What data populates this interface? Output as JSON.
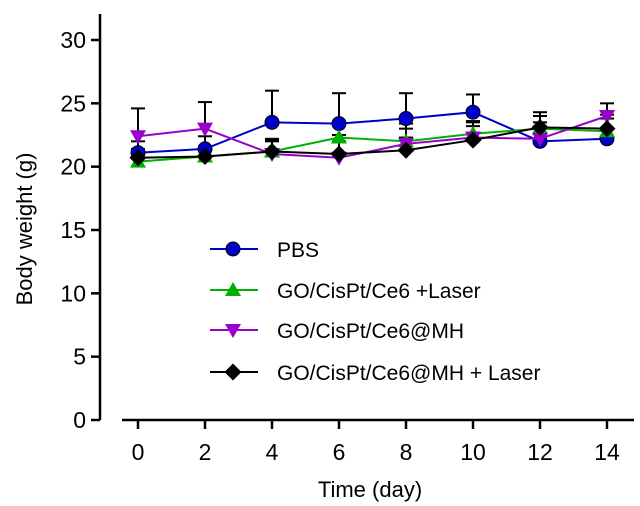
{
  "chart_data": {
    "type": "line",
    "title": "",
    "xlabel": "Time (day)",
    "ylabel": "Body weight (g)",
    "xlim": [
      -1.2,
      15
    ],
    "ylim": [
      0,
      30
    ],
    "xticks": [
      0,
      2,
      4,
      6,
      8,
      10,
      12,
      14
    ],
    "yticks": [
      0,
      5,
      10,
      15,
      20,
      25,
      30
    ],
    "x": [
      0,
      2,
      4,
      6,
      8,
      10,
      12,
      14
    ],
    "grid": false,
    "legend_position": "lower-center",
    "series": [
      {
        "name": "PBS",
        "color": "#0000cc",
        "marker": "circle",
        "values": [
          21.1,
          21.4,
          23.5,
          23.4,
          23.8,
          24.3,
          22.0,
          22.2
        ],
        "error_plus": [
          0.9,
          1.0,
          2.5,
          2.4,
          2.0,
          1.4,
          0.7,
          0.8
        ]
      },
      {
        "name": "GO/CisPt/Ce6 +Laser",
        "color": "#00b000",
        "marker": "triangle-up",
        "values": [
          20.4,
          20.8,
          21.2,
          22.3,
          22.0,
          22.6,
          23.0,
          22.8
        ],
        "error_plus": [
          0.6,
          0.8,
          0.8,
          1.0,
          1.0,
          1.0,
          1.0,
          1.0
        ]
      },
      {
        "name": "GO/CisPt/Ce6@MH",
        "color": "#9900cc",
        "marker": "triangle-down",
        "values": [
          22.4,
          23.0,
          21.0,
          20.7,
          21.8,
          22.3,
          22.2,
          24.0
        ],
        "error_plus": [
          2.2,
          2.1,
          1.2,
          1.8,
          1.6,
          1.2,
          1.3,
          1.0
        ]
      },
      {
        "name": "GO/CisPt/Ce6@MH + Laser",
        "color": "#000000",
        "marker": "diamond",
        "values": [
          20.7,
          20.8,
          21.2,
          21.0,
          21.3,
          22.1,
          23.1,
          23.0
        ],
        "error_plus": [
          0.7,
          0.6,
          0.9,
          1.0,
          1.0,
          1.1,
          1.2,
          1.1
        ]
      }
    ]
  }
}
